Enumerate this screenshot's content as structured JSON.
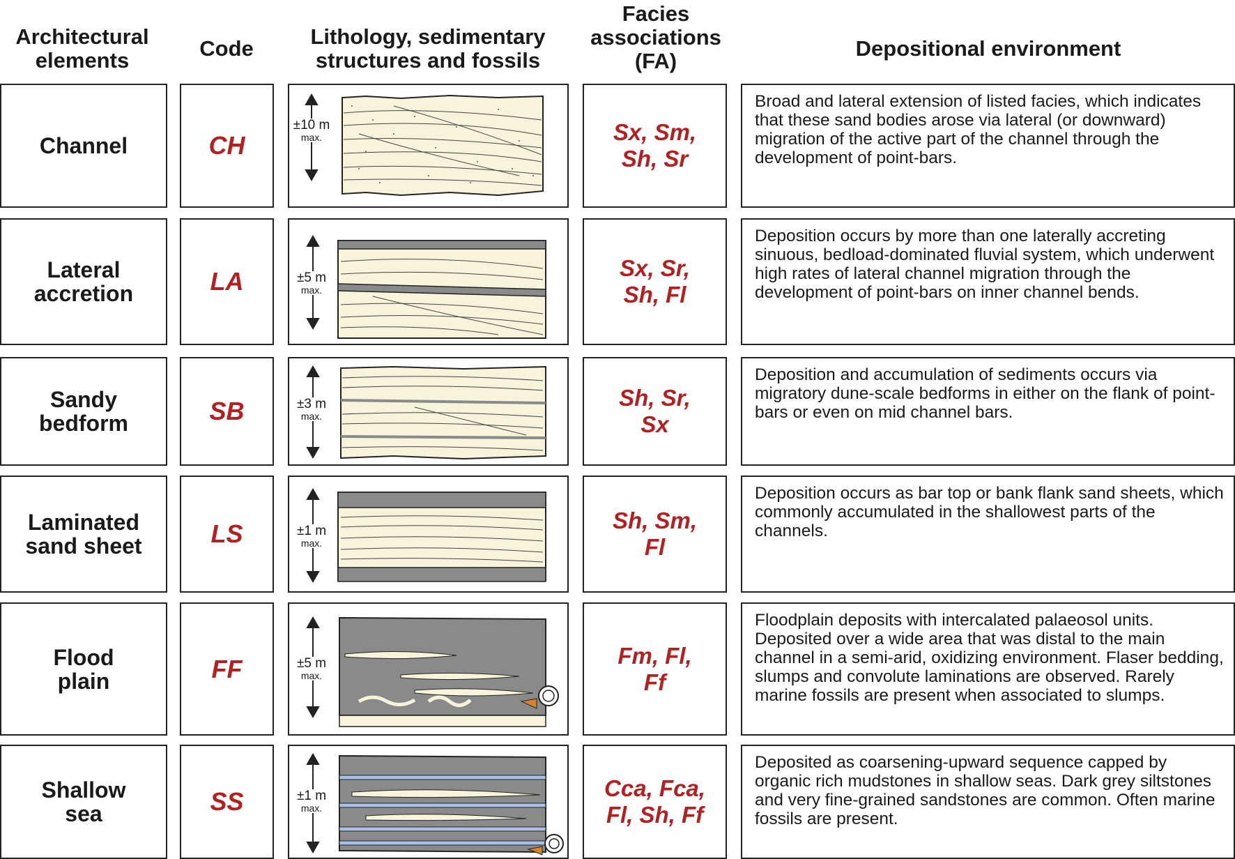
{
  "headers": {
    "elements": "Architectural\nelements",
    "code": "Code",
    "lithology": "Lithology, sedimentary\nstructures and fossils",
    "facies": "Facies\nassociations\n(FA)",
    "environment": "Depositional environment"
  },
  "rows": [
    {
      "element": "Channel",
      "code": "CH",
      "thickness": "±10 m",
      "scale_note": "max.",
      "facies": "Sx, Sm,\nSh, Sr",
      "environment": "Broad and lateral extension of listed facies, which indicates that these sand bodies arose via lateral (or downward) migration of the active part of the channel through the development of point-bars."
    },
    {
      "element": "Lateral\naccretion",
      "code": "LA",
      "thickness": "±5 m",
      "scale_note": "max.",
      "facies": "Sx, Sr,\nSh, Fl",
      "environment": "Deposition occurs by more than one laterally accreting sinuous, bedload-dominated fluvial system, which underwent high rates of lateral channel migration through the development of point-bars on inner channel bends."
    },
    {
      "element": "Sandy\nbedform",
      "code": "SB",
      "thickness": "±3 m",
      "scale_note": "max.",
      "facies": "Sh, Sr,\nSx",
      "environment": "Deposition and accumulation of sediments occurs via migratory dune-scale bedforms in either on the flank of point-bars or even on mid channel bars."
    },
    {
      "element": "Laminated\nsand sheet",
      "code": "LS",
      "thickness": "±1 m",
      "scale_note": "max.",
      "facies": "Sh, Sm,\nFl",
      "environment": "Deposition occurs as bar top or bank flank sand sheets, which commonly accumulated in the shallowest parts of the channels."
    },
    {
      "element": "Flood\nplain",
      "code": "FF",
      "thickness": "±5 m",
      "scale_note": "max.",
      "facies": "Fm, Fl,\nFf",
      "environment": "Floodplain deposits with intercalated palaeosol units. Deposited over a wide area that was distal to the main channel in a semi-arid, oxidizing environment. Flaser bedding, slumps and convolute laminations are observed. Rarely marine fossils are present when associated to slumps."
    },
    {
      "element": "Shallow\nsea",
      "code": "SS",
      "thickness": "±1 m",
      "scale_note": "max.",
      "facies": "Cca, Fca,\nFl, Sh, Ff",
      "environment": "Deposited as coarsening-upward sequence capped by organic rich mudstones in shallow seas. Dark grey siltstones and very fine-grained sandstones are common. Often marine fossils are present."
    }
  ],
  "colors": {
    "code_text": "#b41f1f",
    "sand": "#f8f4dc",
    "mud": "#8a8a8a",
    "limestone": "#a9c1e6",
    "fossil": "#d9822b"
  }
}
